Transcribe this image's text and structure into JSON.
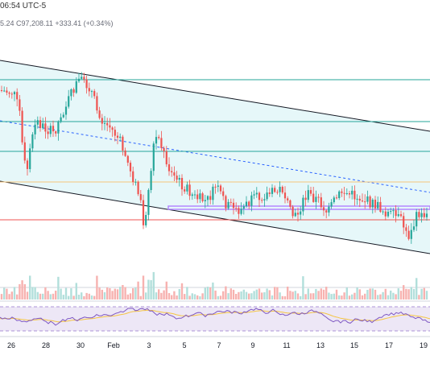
{
  "header": {
    "time_text": "06:54 UTC-5",
    "price_text": "5.24  C97,208.11  +333.41 (+0.34%)"
  },
  "colors": {
    "up": "#26a69a",
    "down": "#ef5350",
    "channel_fill": "#e6f7f9",
    "rsi_band": "#ede7f6",
    "rsi_line": "#7e57c2",
    "rsi_ma": "#f5c542",
    "hline_green": "#26a69a",
    "hline_red": "#ef5350",
    "hline_orange": "#f7c67b",
    "purple_zone": "#b388ff"
  },
  "chart_data": {
    "type": "candlestick",
    "x_ticks": [
      "26",
      "28",
      "30",
      "Feb",
      "3",
      "5",
      "7",
      "9",
      "11",
      "13",
      "15",
      "17",
      "19"
    ],
    "indicators": [
      "Volume",
      "RSI"
    ],
    "legend": "none",
    "grid": false
  }
}
